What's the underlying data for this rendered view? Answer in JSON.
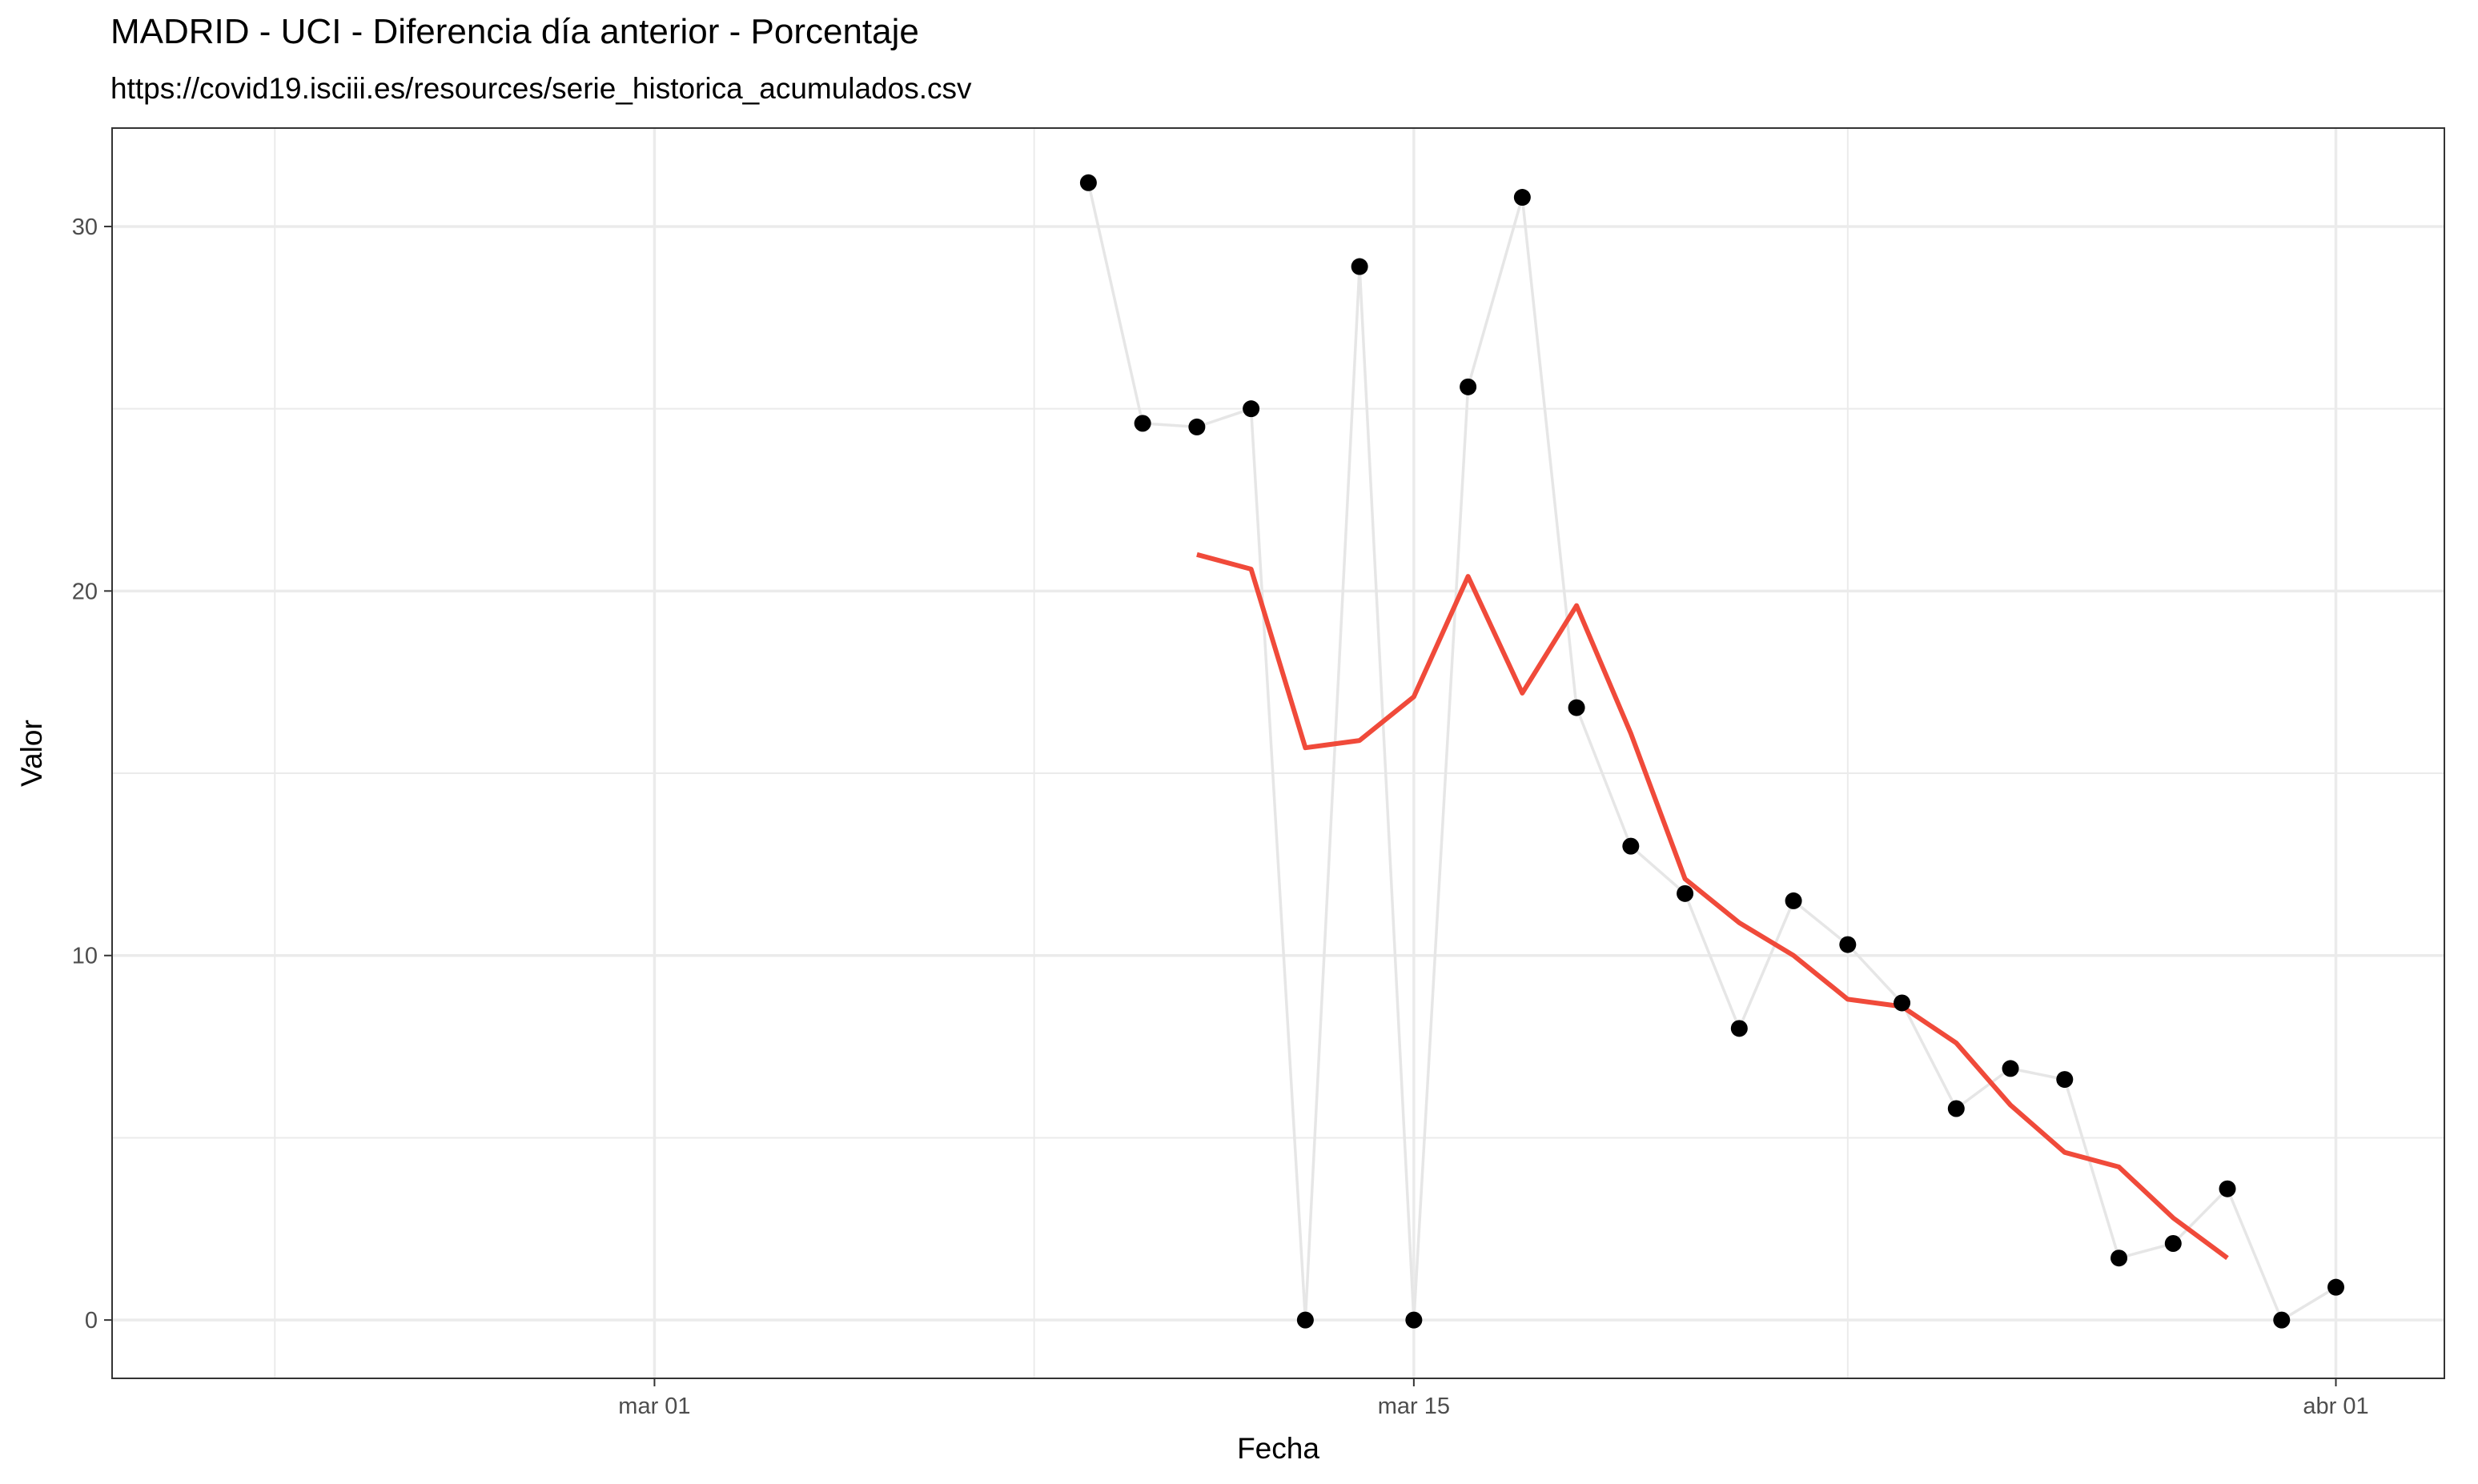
{
  "chart_data": {
    "type": "line",
    "title": "MADRID - UCI - Diferencia día anterior - Porcentaje",
    "subtitle": "https://covid19.isciii.es/resources/serie_historica_acumulados.csv",
    "xlabel": "Fecha",
    "ylabel": "Valor",
    "xlim": [
      "2020-02-20",
      "2020-04-03"
    ],
    "ylim": [
      -1.6,
      32.7
    ],
    "x_ticks": [
      {
        "value": "2020-03-01",
        "label": "mar 01"
      },
      {
        "value": "2020-03-15",
        "label": "mar 15"
      },
      {
        "value": "2020-04-01",
        "label": "abr 01"
      }
    ],
    "x_minor_ticks": [
      "2020-02-23",
      "2020-03-08",
      "2020-03-23"
    ],
    "y_ticks": [
      0,
      10,
      20,
      30
    ],
    "y_minor_ticks": [
      5,
      15,
      25
    ],
    "grid": true,
    "legend": "none",
    "colors": {
      "points": "#000000",
      "connecting_line": "#e6e6e6",
      "rolling_mean": "#f04a3a",
      "grid": "#ebebeb",
      "panel_border": "#333333"
    },
    "series": [
      {
        "x": [
          "2020-03-09",
          "2020-03-10",
          "2020-03-11",
          "2020-03-12",
          "2020-03-13",
          "2020-03-14",
          "2020-03-15",
          "2020-03-16",
          "2020-03-17",
          "2020-03-18",
          "2020-03-19",
          "2020-03-20",
          "2020-03-21",
          "2020-03-22",
          "2020-03-23",
          "2020-03-24",
          "2020-03-25",
          "2020-03-26",
          "2020-03-27",
          "2020-03-28",
          "2020-03-29",
          "2020-03-30",
          "2020-03-31",
          "2020-04-01"
        ],
        "values": [
          31.2,
          24.6,
          24.5,
          25.0,
          0.0,
          28.9,
          0.0,
          25.6,
          30.8,
          16.8,
          13.0,
          11.7,
          8.0,
          11.5,
          10.3,
          8.7,
          5.8,
          6.9,
          6.6,
          1.7,
          2.1,
          3.6,
          0.0,
          0.9
        ],
        "style": "points"
      },
      {
        "x": [
          "2020-03-11",
          "2020-03-12",
          "2020-03-13",
          "2020-03-14",
          "2020-03-15",
          "2020-03-16",
          "2020-03-17",
          "2020-03-18",
          "2020-03-19",
          "2020-03-20",
          "2020-03-21",
          "2020-03-22",
          "2020-03-23",
          "2020-03-24",
          "2020-03-25",
          "2020-03-26",
          "2020-03-27",
          "2020-03-28",
          "2020-03-29",
          "2020-03-30"
        ],
        "values": [
          21.0,
          20.6,
          15.7,
          15.9,
          17.1,
          20.4,
          17.2,
          19.6,
          16.1,
          12.1,
          10.9,
          10.0,
          8.8,
          8.6,
          7.6,
          5.9,
          4.6,
          4.2,
          2.8,
          1.7
        ],
        "style": "line"
      }
    ]
  }
}
